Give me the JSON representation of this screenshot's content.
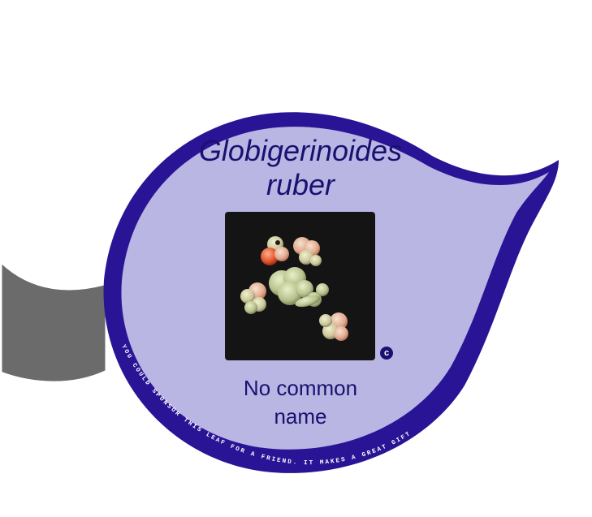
{
  "leaf": {
    "title_line1": "Globigerinoides",
    "title_line2": "ruber",
    "common_name_line1": "No common",
    "common_name_line2": "name",
    "copyright_symbol": "c",
    "sponsor_text": "YOU COULD SPONSOR THIS LEAF FOR A FRIEND. IT MAKES A GREAT GIFT"
  },
  "colors": {
    "leaf_border": "#2a1496",
    "leaf_fill": "#b9b6e3",
    "text": "#1a1070",
    "branch": "#6b6b6b",
    "photo_background": "#141414"
  },
  "icons": {
    "copyright": "copyright-icon"
  }
}
